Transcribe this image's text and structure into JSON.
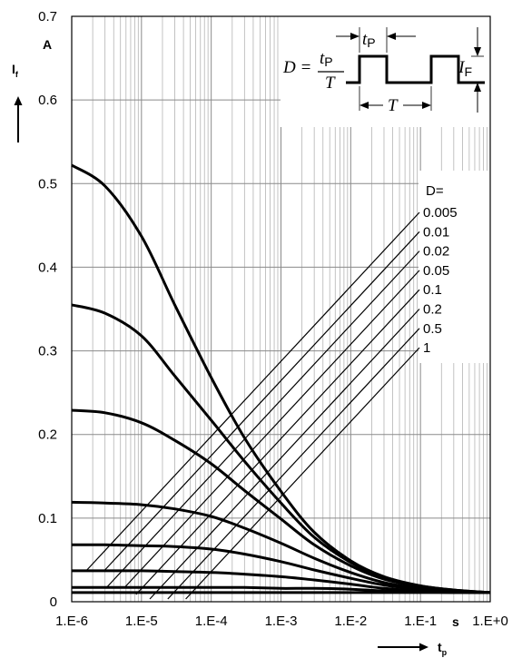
{
  "chart_data": {
    "type": "line",
    "title": "",
    "xscale": "log",
    "xlim": [
      1e-06,
      1
    ],
    "ylim": [
      0,
      0.7
    ],
    "grid": true,
    "x_tick_labels": [
      "1.E-6",
      "1.E-5",
      "1.E-4",
      "1.E-3",
      "1.E-2",
      "1.E-1",
      "1.E+0"
    ],
    "y_tick_labels": [
      "0",
      "0.1",
      "0.2",
      "0.3",
      "0.4",
      "0.5",
      "0.6",
      "0.7"
    ],
    "y_tick_values": [
      0,
      0.1,
      0.2,
      0.3,
      0.4,
      0.5,
      0.6,
      0.7
    ],
    "x_unit": "s",
    "y_unit": "A",
    "xlabel_main": "t",
    "xlabel_sub": "p",
    "ylabel_main": "I",
    "ylabel_sub": "f",
    "legend_title": "D=",
    "legend_labels": [
      "0.005",
      "0.01",
      "0.02",
      "0.05",
      "0.1",
      "0.2",
      "0.5",
      "1"
    ],
    "series": [
      {
        "name": "0.005",
        "x": [
          1e-06,
          3e-06,
          1e-05,
          3e-05,
          0.0001,
          0.0003,
          0.001,
          0.003,
          0.01,
          0.03,
          0.1,
          0.3,
          1
        ],
        "y": [
          0.522,
          0.497,
          0.437,
          0.355,
          0.268,
          0.196,
          0.132,
          0.083,
          0.049,
          0.03,
          0.019,
          0.014,
          0.011
        ]
      },
      {
        "name": "0.01",
        "x": [
          1e-06,
          3e-06,
          1e-05,
          3e-05,
          0.0001,
          0.0003,
          0.001,
          0.003,
          0.01,
          0.03,
          0.1,
          0.3,
          1
        ],
        "y": [
          0.355,
          0.345,
          0.318,
          0.27,
          0.217,
          0.168,
          0.118,
          0.077,
          0.047,
          0.029,
          0.019,
          0.014,
          0.011
        ]
      },
      {
        "name": "0.02",
        "x": [
          1e-06,
          3e-06,
          1e-05,
          3e-05,
          0.0001,
          0.0003,
          0.001,
          0.003,
          0.01,
          0.03,
          0.1,
          0.3,
          1
        ],
        "y": [
          0.229,
          0.226,
          0.214,
          0.193,
          0.165,
          0.133,
          0.099,
          0.068,
          0.043,
          0.027,
          0.018,
          0.013,
          0.011
        ]
      },
      {
        "name": "0.05",
        "x": [
          1e-06,
          3e-06,
          1e-05,
          3e-05,
          0.0001,
          0.0003,
          0.001,
          0.003,
          0.01,
          0.03,
          0.1,
          0.3,
          1
        ],
        "y": [
          0.119,
          0.118,
          0.116,
          0.111,
          0.102,
          0.088,
          0.07,
          0.052,
          0.035,
          0.023,
          0.016,
          0.013,
          0.011
        ]
      },
      {
        "name": "0.1",
        "x": [
          1e-06,
          3e-06,
          1e-05,
          3e-05,
          0.0001,
          0.0003,
          0.001,
          0.003,
          0.01,
          0.03,
          0.1,
          0.3,
          1
        ],
        "y": [
          0.068,
          0.068,
          0.067,
          0.066,
          0.063,
          0.057,
          0.048,
          0.038,
          0.028,
          0.02,
          0.015,
          0.012,
          0.011
        ]
      },
      {
        "name": "0.2",
        "x": [
          1e-06,
          3e-06,
          1e-05,
          3e-05,
          0.0001,
          0.0003,
          0.001,
          0.003,
          0.01,
          0.03,
          0.1,
          0.3,
          1
        ],
        "y": [
          0.037,
          0.037,
          0.037,
          0.036,
          0.035,
          0.033,
          0.03,
          0.026,
          0.021,
          0.016,
          0.013,
          0.012,
          0.011
        ]
      },
      {
        "name": "0.5",
        "x": [
          1e-06,
          3e-06,
          1e-05,
          3e-05,
          0.0001,
          0.0003,
          0.001,
          0.003,
          0.01,
          0.03,
          0.1,
          0.3,
          1
        ],
        "y": [
          0.017,
          0.017,
          0.017,
          0.017,
          0.017,
          0.017,
          0.016,
          0.016,
          0.015,
          0.013,
          0.012,
          0.011,
          0.011
        ]
      },
      {
        "name": "1",
        "x": [
          1e-06,
          1e-05,
          0.0001,
          0.001,
          0.01,
          0.1,
          1
        ],
        "y": [
          0.011,
          0.011,
          0.011,
          0.011,
          0.011,
          0.011,
          0.011
        ]
      }
    ],
    "inset": {
      "formula_lhs": "D =",
      "numerator_var": "t",
      "numerator_sub": "P",
      "denominator": "T",
      "pulse_width_var": "t",
      "pulse_width_sub": "P",
      "period_label": "T",
      "amplitude_var": "I",
      "amplitude_sub": "F"
    }
  }
}
